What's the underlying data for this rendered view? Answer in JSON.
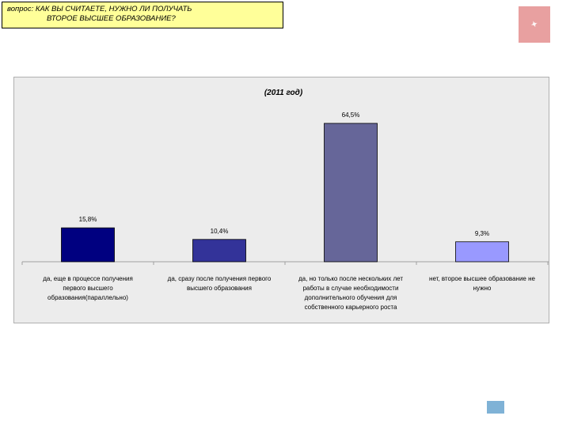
{
  "question": {
    "line1": "вопрос: КАК ВЫ СЧИТАЕТЕ, НУЖНО ЛИ ПОЛУЧАТЬ",
    "line2": "ВТОРОЕ ВЫСШЕЕ ОБРАЗОВАНИЕ?"
  },
  "colors": {
    "question_bg": "#ffff99",
    "panel_bg": "#ececec"
  },
  "chart_data": {
    "type": "bar",
    "title": "(2011 год)",
    "categories": [
      [
        "да, еще в процессе получения",
        "первого высшего",
        "образования(параллельно)"
      ],
      [
        "да, сразу после получения первого",
        "высшего образования"
      ],
      [
        "да, но только после нескольких лет",
        "работы в случае необходимости",
        "дополнительного обучения для",
        "собственного карьерного роста"
      ],
      [
        "нет, второе высшее образование не",
        "нужно"
      ]
    ],
    "values": [
      15.8,
      10.4,
      64.5,
      9.3
    ],
    "value_labels": [
      "15,8%",
      "10,4%",
      "64,5%",
      "9,3%"
    ],
    "bar_colors": [
      "#000080",
      "#333399",
      "#666699",
      "#9999ff"
    ],
    "ylim": [
      0,
      64.5
    ],
    "grid": false,
    "legend": "none"
  }
}
